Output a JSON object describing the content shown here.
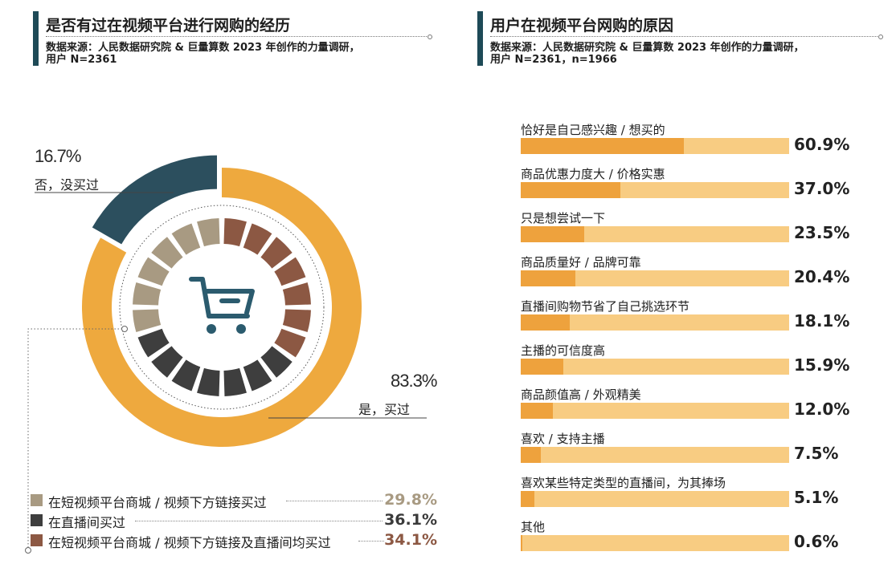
{
  "left_panel": {
    "title": "是否有过在视频平台进行网购的经历",
    "source_line1": "数据来源：人民数据研究院 & 巨量算数 2023 年创作的力量调研，",
    "source_line2": "用户 N=2361"
  },
  "right_panel": {
    "title": "用户在视频平台网购的原因",
    "source_line1": "数据来源：人民数据研究院 & 巨量算数 2023 年创作的力量调研，",
    "source_line2": "用户 N=2361，n=1966"
  },
  "icons": {
    "center": "shopping-cart-icon"
  },
  "colors": {
    "yes": "#eea93e",
    "no": "#2c4f5e",
    "short_video_mall": "#a89a82",
    "live_room": "#3e3e3e",
    "both": "#8c5843",
    "bar_fill": "#eea23d",
    "bar_track": "#f8cc82",
    "cart": "#2b5b6e"
  },
  "chart_data": [
    {
      "type": "pie",
      "title": "是否有过在视频平台进行网购的经历",
      "slices": [
        {
          "label": "是，买过",
          "value": 83.3,
          "display": "83.3%",
          "color": "#eea93e"
        },
        {
          "label": "否，没买过",
          "value": 16.7,
          "display": "16.7%",
          "color": "#2c4f5e"
        }
      ],
      "breakdown_of": "是，买过",
      "breakdown": [
        {
          "label": "在短视频平台商城 / 视频下方链接买过",
          "value": 29.8,
          "display": "29.8%",
          "color": "#a89a82"
        },
        {
          "label": "在直播间买过",
          "value": 36.1,
          "display": "36.1%",
          "color": "#3e3e3e"
        },
        {
          "label": "在短视频平台商城 / 视频下方链接及直播间均买过",
          "value": 34.1,
          "display": "34.1%",
          "color": "#8c5843"
        }
      ]
    },
    {
      "type": "bar",
      "title": "用户在视频平台网购的原因",
      "orientation": "horizontal",
      "xlim": [
        0,
        100
      ],
      "categories": [
        "恰好是自己感兴趣 / 想买的",
        "商品优惠力度大 / 价格实惠",
        "只是想尝试一下",
        "商品质量好 / 品牌可靠",
        "直播间购物节省了自己挑选环节",
        "主播的可信度高",
        "商品颜值高 / 外观精美",
        "喜欢 / 支持主播",
        "喜欢某些特定类型的直播间，为其捧场",
        "其他"
      ],
      "values": [
        60.9,
        37.0,
        23.5,
        20.4,
        18.1,
        15.9,
        12.0,
        7.5,
        5.1,
        0.6
      ],
      "value_labels": [
        "60.9%",
        "37.0%",
        "23.5%",
        "20.4%",
        "18.1%",
        "15.9%",
        "12.0%",
        "7.5%",
        "5.1%",
        "0.6%"
      ]
    }
  ]
}
